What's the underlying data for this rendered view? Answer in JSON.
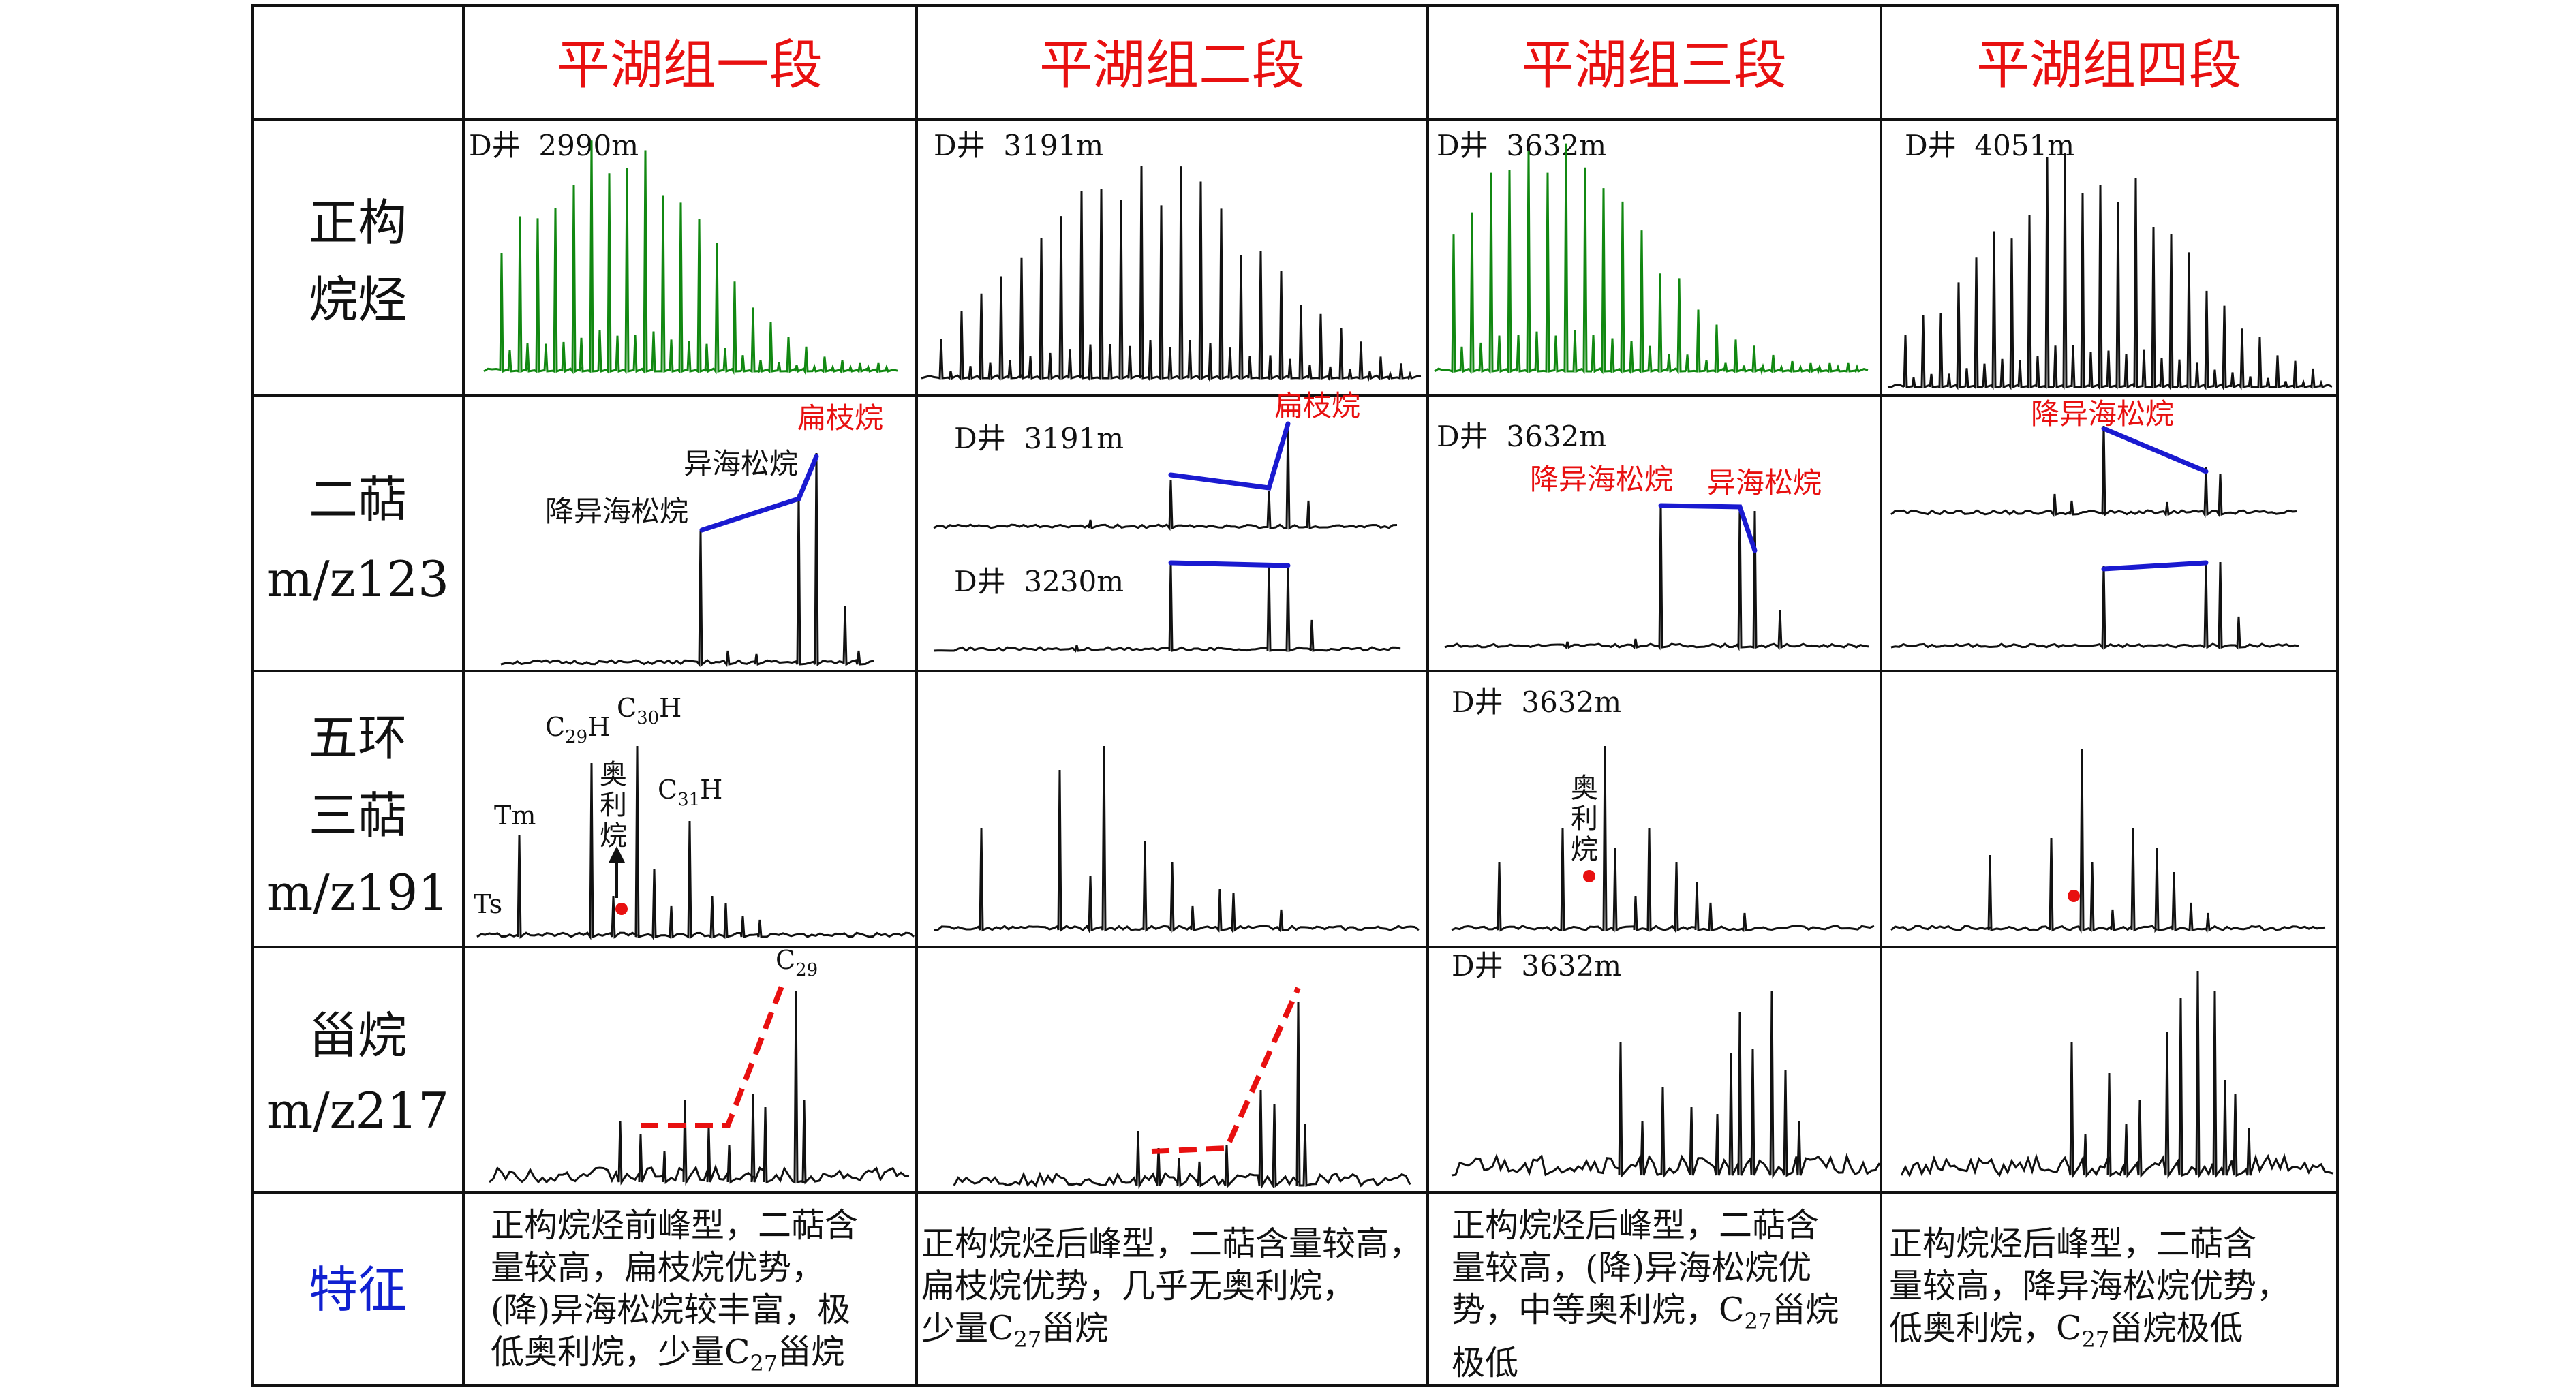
{
  "headers": {
    "stages": [
      "平湖组一段",
      "平湖组二段",
      "平湖组三段",
      "平湖组四段"
    ],
    "stage_color": "#e81010",
    "rows": [
      "正构|烷烃",
      "二萜|m/z123",
      "五环|三萜|m/z191",
      "甾烷|m/z217",
      "特征"
    ],
    "feature_label_color": "#1020d0"
  },
  "cells": {
    "r0": {
      "well": [
        "D井  2990m",
        "D井  3191m",
        "D井  3632m",
        "D井  4051m"
      ],
      "colors": [
        "#118811",
        "#111111",
        "#118811",
        "#111111"
      ]
    },
    "r1": {
      "c0_labels": {
        "bianzhi": "扁枝烷",
        "yihai": "异海松烷",
        "jiangyihai": "降异海松烷"
      },
      "c1_wells": [
        "D井  3191m",
        "D井  3230m"
      ],
      "c1_label": "扁枝烷",
      "c2_well": "D井  3632m",
      "c2_labels": {
        "jiangyihai": "降异海松烷",
        "yihai": "异海松烷"
      },
      "c3_label": "降异海松烷",
      "trend_color": "#1a1ad0",
      "red_label_color": "#e81010"
    },
    "r2": {
      "c0_labels": {
        "ts": "Ts",
        "tm": "Tm",
        "c29h": "C29H",
        "c30h": "C30H",
        "c31h": "C31H",
        "oleanane": "奥利烷"
      },
      "c2_well": "D井  3632m",
      "c2_oleanane": "奥利烷",
      "marker_color": "#e81010"
    },
    "r3": {
      "c0_label": "C29",
      "c2_well": "D井  3632m",
      "trend_color": "#e81010"
    },
    "r4": {
      "features": [
        [
          "正构烷烃前峰型，二萜含",
          "量较高，扁枝烷优势，",
          "(降)异海松烷较丰富，极",
          "低奥利烷，少量C27甾烷"
        ],
        [
          "正构烷烃后峰型，二萜含量较高，",
          "扁枝烷优势，几乎无奥利烷，",
          "少量C27甾烷"
        ],
        [
          "正构烷烃后峰型，二萜含",
          "量较高，(降)异海松烷优",
          "势，中等奥利烷，C27甾烷",
          "极低"
        ],
        [
          "正构烷烃后峰型，二萜含",
          "量较高，降异海松烷优势，",
          "低奥利烷，C27甾烷极低"
        ]
      ]
    }
  }
}
